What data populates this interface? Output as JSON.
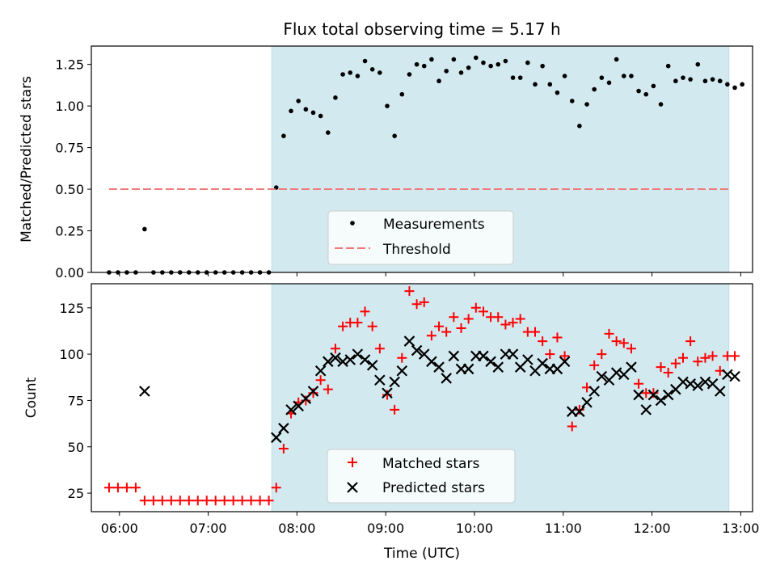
{
  "chart_data": [
    {
      "type": "scatter",
      "title": "Flux total observing time = 5.17 h",
      "xlabel": "",
      "ylabel": "Matched/Predicted stars",
      "xlim": [
        "05:41",
        "13:08"
      ],
      "ylim": [
        0,
        1.36
      ],
      "yticks": [
        "0.00",
        "0.25",
        "0.50",
        "0.75",
        "1.00",
        "1.25"
      ],
      "shaded_region": {
        "start": "07:43",
        "end": "12:52",
        "color": "#d3e9f0"
      },
      "threshold": {
        "value": 0.5,
        "start": "05:53",
        "end": "12:52",
        "color": "#f08080"
      },
      "legend": {
        "position": "lower-center",
        "entries": [
          "Measurements",
          "Threshold"
        ]
      },
      "series": [
        {
          "name": "Measurements",
          "color": "#000000",
          "marker": "dot",
          "points": [
            [
              "05:53",
              0
            ],
            [
              "05:59",
              0
            ],
            [
              "06:05",
              0
            ],
            [
              "06:11",
              0
            ],
            [
              "06:17",
              0.26
            ],
            [
              "06:23",
              0
            ],
            [
              "06:29",
              0
            ],
            [
              "06:35",
              0
            ],
            [
              "06:41",
              0
            ],
            [
              "06:47",
              0
            ],
            [
              "06:53",
              0
            ],
            [
              "06:59",
              0
            ],
            [
              "07:05",
              0
            ],
            [
              "07:11",
              0
            ],
            [
              "07:17",
              0
            ],
            [
              "07:23",
              0
            ],
            [
              "07:29",
              0
            ],
            [
              "07:35",
              0
            ],
            [
              "07:41",
              0
            ],
            [
              "07:46",
              0.51
            ],
            [
              "07:51",
              0.82
            ],
            [
              "07:56",
              0.97
            ],
            [
              "08:01",
              1.03
            ],
            [
              "08:06",
              0.98
            ],
            [
              "08:11",
              0.96
            ],
            [
              "08:16",
              0.94
            ],
            [
              "08:21",
              0.84
            ],
            [
              "08:26",
              1.05
            ],
            [
              "08:31",
              1.19
            ],
            [
              "08:36",
              1.2
            ],
            [
              "08:41",
              1.18
            ],
            [
              "08:46",
              1.27
            ],
            [
              "08:51",
              1.22
            ],
            [
              "08:56",
              1.2
            ],
            [
              "09:01",
              1.0
            ],
            [
              "09:06",
              0.82
            ],
            [
              "09:11",
              1.07
            ],
            [
              "09:16",
              1.19
            ],
            [
              "09:21",
              1.25
            ],
            [
              "09:26",
              1.24
            ],
            [
              "09:31",
              1.28
            ],
            [
              "09:36",
              1.15
            ],
            [
              "09:41",
              1.21
            ],
            [
              "09:46",
              1.28
            ],
            [
              "09:51",
              1.2
            ],
            [
              "09:56",
              1.23
            ],
            [
              "10:01",
              1.29
            ],
            [
              "10:06",
              1.26
            ],
            [
              "10:11",
              1.24
            ],
            [
              "10:16",
              1.25
            ],
            [
              "10:21",
              1.27
            ],
            [
              "10:26",
              1.17
            ],
            [
              "10:31",
              1.17
            ],
            [
              "10:36",
              1.26
            ],
            [
              "10:41",
              1.13
            ],
            [
              "10:46",
              1.24
            ],
            [
              "10:51",
              1.13
            ],
            [
              "10:56",
              1.08
            ],
            [
              "11:01",
              1.18
            ],
            [
              "11:06",
              1.03
            ],
            [
              "11:11",
              0.88
            ],
            [
              "11:16",
              1.01
            ],
            [
              "11:21",
              1.1
            ],
            [
              "11:26",
              1.17
            ],
            [
              "11:31",
              1.14
            ],
            [
              "11:36",
              1.28
            ],
            [
              "11:41",
              1.18
            ],
            [
              "11:46",
              1.18
            ],
            [
              "11:51",
              1.09
            ],
            [
              "11:56",
              1.07
            ],
            [
              "12:01",
              1.12
            ],
            [
              "12:06",
              1.01
            ],
            [
              "12:11",
              1.24
            ],
            [
              "12:16",
              1.15
            ],
            [
              "12:21",
              1.17
            ],
            [
              "12:26",
              1.16
            ],
            [
              "12:31",
              1.25
            ],
            [
              "12:36",
              1.15
            ],
            [
              "12:41",
              1.16
            ],
            [
              "12:46",
              1.15
            ],
            [
              "12:51",
              1.13
            ],
            [
              "12:56",
              1.11
            ],
            [
              "13:01",
              1.13
            ]
          ]
        }
      ]
    },
    {
      "type": "scatter",
      "title": "",
      "xlabel": "Time (UTC)",
      "ylabel": "Count",
      "xlim": [
        "05:41",
        "13:08"
      ],
      "ylim": [
        15,
        138
      ],
      "xticks": [
        "06:00",
        "07:00",
        "08:00",
        "09:00",
        "10:00",
        "11:00",
        "12:00",
        "13:00"
      ],
      "yticks": [
        "25",
        "50",
        "75",
        "100",
        "125"
      ],
      "shaded_region": {
        "start": "07:43",
        "end": "12:52",
        "color": "#d3e9f0"
      },
      "legend": {
        "position": "lower-center",
        "entries": [
          "Matched stars",
          "Predicted stars"
        ]
      },
      "series": [
        {
          "name": "Matched stars",
          "color": "#ff0000",
          "marker": "plus",
          "points": [
            [
              "05:53",
              28
            ],
            [
              "05:59",
              28
            ],
            [
              "06:05",
              28
            ],
            [
              "06:11",
              28
            ],
            [
              "06:17",
              21
            ],
            [
              "06:23",
              21
            ],
            [
              "06:29",
              21
            ],
            [
              "06:35",
              21
            ],
            [
              "06:41",
              21
            ],
            [
              "06:47",
              21
            ],
            [
              "06:53",
              21
            ],
            [
              "06:59",
              21
            ],
            [
              "07:05",
              21
            ],
            [
              "07:11",
              21
            ],
            [
              "07:17",
              21
            ],
            [
              "07:23",
              21
            ],
            [
              "07:29",
              21
            ],
            [
              "07:35",
              21
            ],
            [
              "07:41",
              21
            ],
            [
              "07:46",
              28
            ],
            [
              "07:51",
              49
            ],
            [
              "07:56",
              68
            ],
            [
              "08:01",
              74
            ],
            [
              "08:06",
              75
            ],
            [
              "08:11",
              79
            ],
            [
              "08:16",
              86
            ],
            [
              "08:21",
              81
            ],
            [
              "08:26",
              103
            ],
            [
              "08:31",
              115
            ],
            [
              "08:36",
              117
            ],
            [
              "08:41",
              117
            ],
            [
              "08:46",
              123
            ],
            [
              "08:51",
              115
            ],
            [
              "08:56",
              103
            ],
            [
              "09:01",
              78
            ],
            [
              "09:06",
              70
            ],
            [
              "09:11",
              98
            ],
            [
              "09:16",
              134
            ],
            [
              "09:21",
              127
            ],
            [
              "09:26",
              128
            ],
            [
              "09:31",
              110
            ],
            [
              "09:36",
              115
            ],
            [
              "09:41",
              112
            ],
            [
              "09:46",
              120
            ],
            [
              "09:51",
              114
            ],
            [
              "09:56",
              119
            ],
            [
              "10:01",
              125
            ],
            [
              "10:06",
              123
            ],
            [
              "10:11",
              120
            ],
            [
              "10:16",
              120
            ],
            [
              "10:21",
              116
            ],
            [
              "10:26",
              117
            ],
            [
              "10:31",
              119
            ],
            [
              "10:36",
              112
            ],
            [
              "10:41",
              112
            ],
            [
              "10:46",
              107
            ],
            [
              "10:51",
              100
            ],
            [
              "10:56",
              109
            ],
            [
              "11:01",
              99
            ],
            [
              "11:06",
              61
            ],
            [
              "11:11",
              70
            ],
            [
              "11:16",
              82
            ],
            [
              "11:21",
              94
            ],
            [
              "11:26",
              100
            ],
            [
              "11:31",
              111
            ],
            [
              "11:36",
              107
            ],
            [
              "11:41",
              106
            ],
            [
              "11:46",
              103
            ],
            [
              "11:51",
              84
            ],
            [
              "11:56",
              79
            ],
            [
              "12:01",
              79
            ],
            [
              "12:06",
              93
            ],
            [
              "12:11",
              90
            ],
            [
              "12:16",
              95
            ],
            [
              "12:21",
              98
            ],
            [
              "12:26",
              107
            ],
            [
              "12:31",
              96
            ],
            [
              "12:36",
              98
            ],
            [
              "12:41",
              99
            ],
            [
              "12:46",
              91
            ],
            [
              "12:51",
              99
            ],
            [
              "12:56",
              99
            ]
          ]
        },
        {
          "name": "Predicted stars",
          "color": "#000000",
          "marker": "x",
          "points": [
            [
              "06:17",
              80
            ],
            [
              "07:46",
              55
            ],
            [
              "07:51",
              60
            ],
            [
              "07:56",
              70
            ],
            [
              "08:01",
              72
            ],
            [
              "08:06",
              76
            ],
            [
              "08:11",
              80
            ],
            [
              "08:16",
              91
            ],
            [
              "08:21",
              96
            ],
            [
              "08:26",
              98
            ],
            [
              "08:31",
              96
            ],
            [
              "08:36",
              97
            ],
            [
              "08:41",
              100
            ],
            [
              "08:46",
              97
            ],
            [
              "08:51",
              94
            ],
            [
              "08:56",
              86
            ],
            [
              "09:01",
              79
            ],
            [
              "09:06",
              85
            ],
            [
              "09:11",
              91
            ],
            [
              "09:16",
              107
            ],
            [
              "09:21",
              102
            ],
            [
              "09:26",
              100
            ],
            [
              "09:31",
              96
            ],
            [
              "09:36",
              93
            ],
            [
              "09:41",
              87
            ],
            [
              "09:46",
              99
            ],
            [
              "09:51",
              92
            ],
            [
              "09:56",
              92
            ],
            [
              "10:01",
              99
            ],
            [
              "10:06",
              99
            ],
            [
              "10:11",
              96
            ],
            [
              "10:16",
              93
            ],
            [
              "10:21",
              100
            ],
            [
              "10:26",
              100
            ],
            [
              "10:31",
              93
            ],
            [
              "10:36",
              97
            ],
            [
              "10:41",
              91
            ],
            [
              "10:46",
              95
            ],
            [
              "10:51",
              92
            ],
            [
              "10:56",
              92
            ],
            [
              "11:01",
              96
            ],
            [
              "11:06",
              69
            ],
            [
              "11:11",
              69
            ],
            [
              "11:16",
              74
            ],
            [
              "11:21",
              80
            ],
            [
              "11:26",
              88
            ],
            [
              "11:31",
              86
            ],
            [
              "11:36",
              90
            ],
            [
              "11:41",
              89
            ],
            [
              "11:46",
              93
            ],
            [
              "11:51",
              78
            ],
            [
              "11:56",
              70
            ],
            [
              "12:01",
              78
            ],
            [
              "12:06",
              75
            ],
            [
              "12:11",
              78
            ],
            [
              "12:16",
              81
            ],
            [
              "12:21",
              85
            ],
            [
              "12:26",
              84
            ],
            [
              "12:31",
              83
            ],
            [
              "12:36",
              85
            ],
            [
              "12:41",
              84
            ],
            [
              "12:46",
              80
            ],
            [
              "12:51",
              89
            ],
            [
              "12:56",
              88
            ]
          ]
        }
      ]
    }
  ]
}
